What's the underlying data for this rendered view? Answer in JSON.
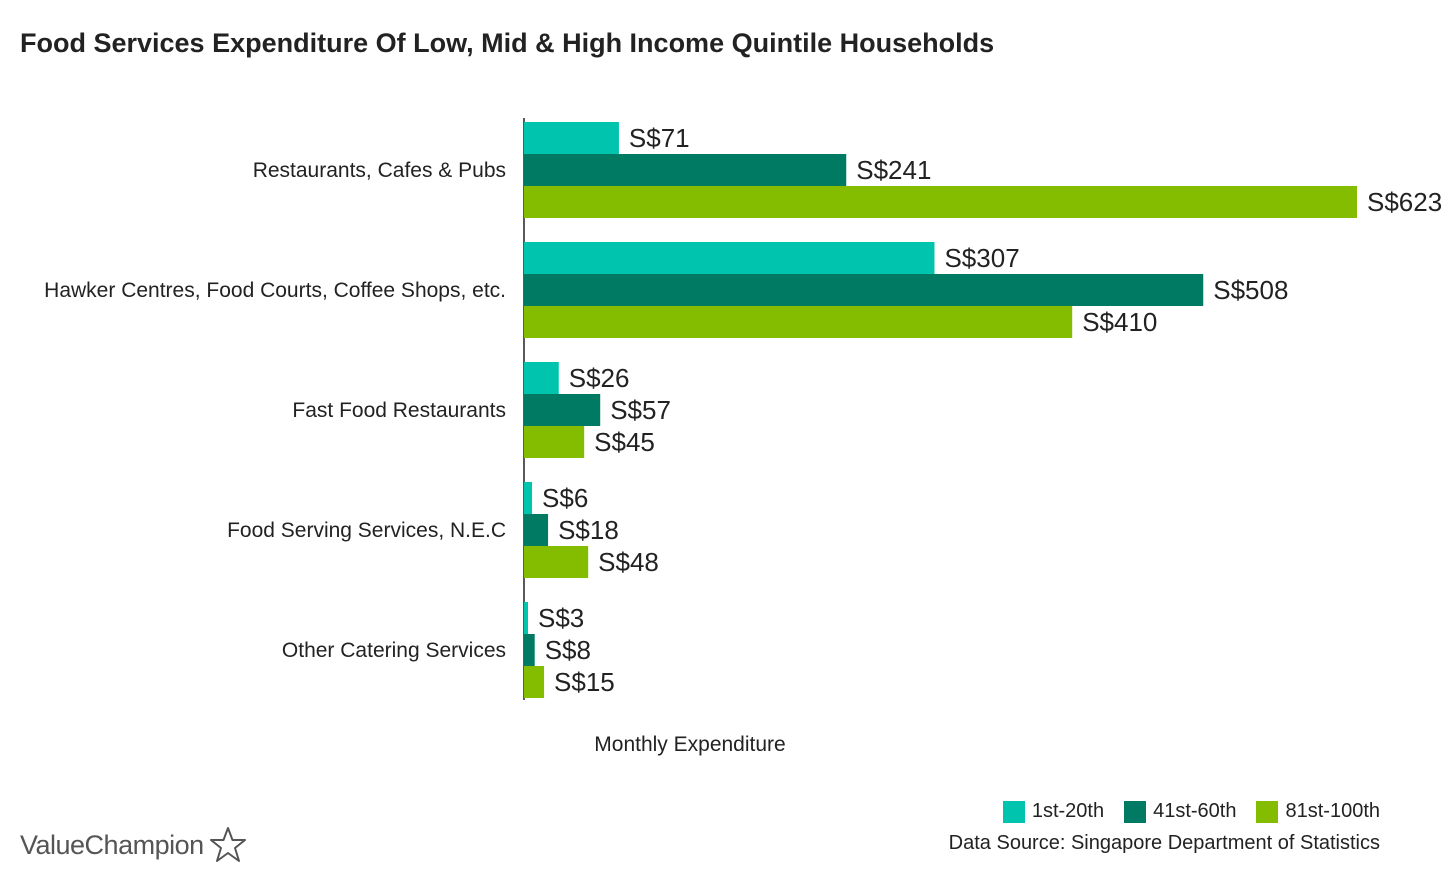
{
  "title": "Food Services Expenditure Of Low, Mid & High Income Quintile Households",
  "chart_data": {
    "type": "bar",
    "orientation": "horizontal",
    "categories": [
      "Restaurants, Cafes & Pubs",
      "Hawker Centres, Food Courts, Coffee Shops, etc.",
      "Fast Food Restaurants",
      "Food Serving Services, N.E.C",
      "Other Catering Services"
    ],
    "series": [
      {
        "name": "1st-20th",
        "color": "#00c4ad",
        "values": [
          71,
          307,
          26,
          6,
          3
        ],
        "labels": [
          "S$71",
          "S$307",
          "S$26",
          "S$6",
          "S$3"
        ]
      },
      {
        "name": "41st-60th",
        "color": "#007a63",
        "values": [
          241,
          508,
          57,
          18,
          8
        ],
        "labels": [
          "S$241",
          "S$508",
          "S$57",
          "S$18",
          "S$8"
        ]
      },
      {
        "name": "81st-100th",
        "color": "#84bd00",
        "values": [
          623,
          410,
          45,
          48,
          15
        ],
        "labels": [
          "S$623",
          "S$410",
          "S$45",
          "S$48",
          "S$15"
        ]
      }
    ],
    "xlabel": "Monthly Expenditure",
    "xlim": [
      0,
      623
    ],
    "grid": false,
    "legend": "bottom-right"
  },
  "source": "Data Source: Singapore Department of Statistics",
  "brand": {
    "name": "ValueChampion",
    "icon": "star-outline-icon"
  }
}
